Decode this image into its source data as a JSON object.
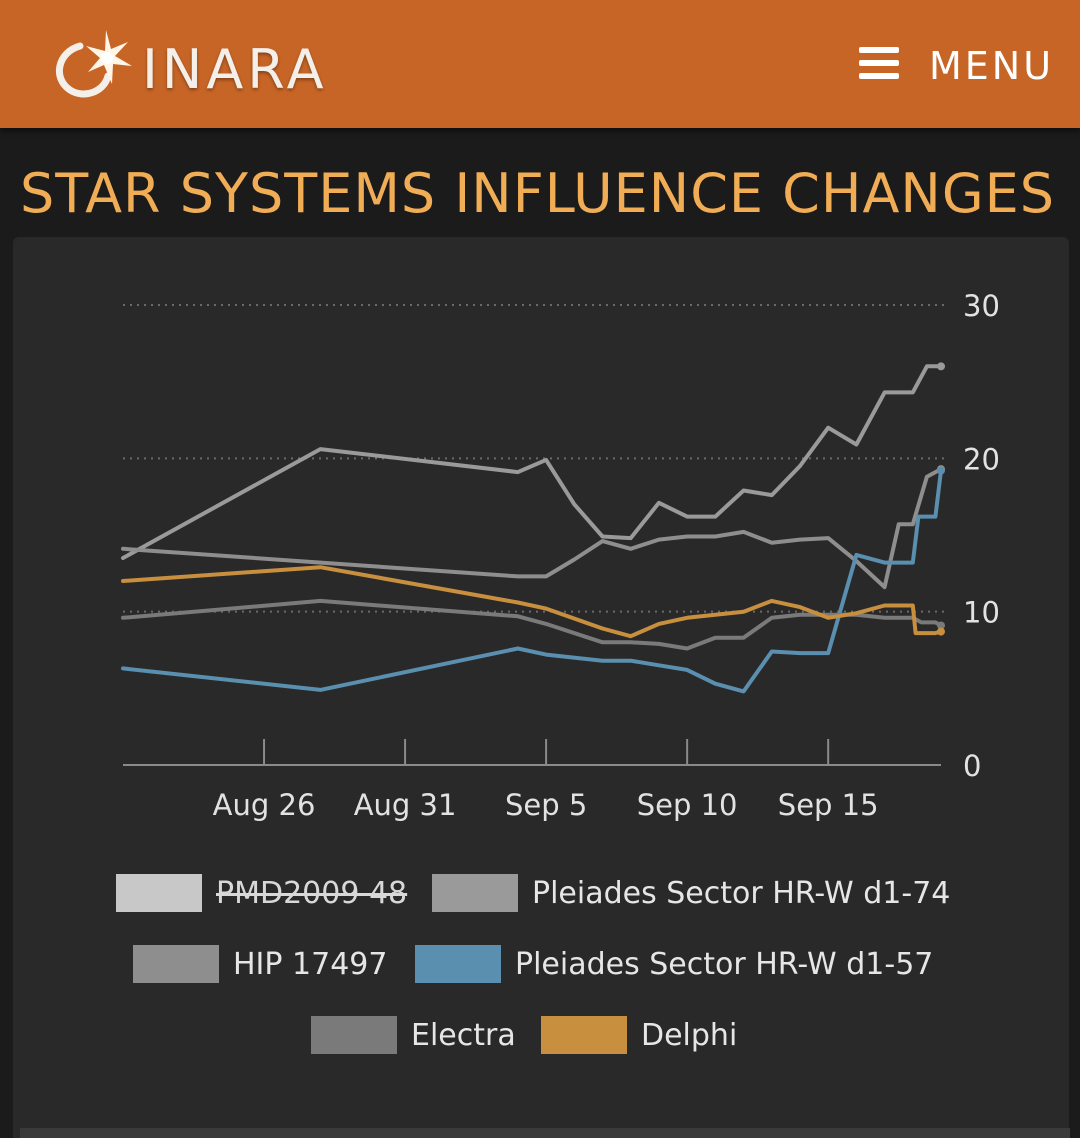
{
  "header": {
    "brand": "INARA",
    "menu_label": "MENU",
    "background_color": "#c76526"
  },
  "page_title": "STAR SYSTEMS INFLUENCE CHANGES",
  "chart_data": {
    "type": "line",
    "title": "",
    "xlabel": "",
    "ylabel": "",
    "ylim": [
      0,
      30
    ],
    "y_axis_position": "right",
    "y_ticks": [
      0,
      10,
      20,
      30
    ],
    "x_ticks": [
      "Aug 26",
      "Aug 31",
      "Sep 5",
      "Sep 10",
      "Sep 15"
    ],
    "x_range": [
      "2024-08-21",
      "2024-09-19"
    ],
    "grid": true,
    "legend_position": "bottom",
    "series": [
      {
        "name": "PMD2009 48",
        "color": "#c8c8c8",
        "visible": false,
        "points": []
      },
      {
        "name": "Pleiades Sector HR-W d1-74",
        "color": "#9a9a9a",
        "visible": true,
        "points": [
          [
            "2024-08-21",
            13.5
          ],
          [
            "2024-08-28",
            20.6
          ],
          [
            "2024-09-04",
            19.1
          ],
          [
            "2024-09-05",
            19.9
          ],
          [
            "2024-09-06",
            17.0
          ],
          [
            "2024-09-07",
            14.9
          ],
          [
            "2024-09-08",
            14.8
          ],
          [
            "2024-09-09",
            17.1
          ],
          [
            "2024-09-10",
            16.2
          ],
          [
            "2024-09-11",
            16.2
          ],
          [
            "2024-09-12",
            17.9
          ],
          [
            "2024-09-13",
            17.6
          ],
          [
            "2024-09-14",
            19.5
          ],
          [
            "2024-09-15",
            22.0
          ],
          [
            "2024-09-16",
            20.9
          ],
          [
            "2024-09-17",
            24.3
          ],
          [
            "2024-09-18",
            24.3
          ],
          [
            "2024-09-18.5",
            26.0
          ],
          [
            "2024-09-19",
            26.0
          ]
        ]
      },
      {
        "name": "HIP 17497",
        "color": "#8e8e8e",
        "visible": true,
        "points": [
          [
            "2024-08-21",
            14.1
          ],
          [
            "2024-09-04",
            12.3
          ],
          [
            "2024-09-05",
            12.3
          ],
          [
            "2024-09-06",
            13.4
          ],
          [
            "2024-09-07",
            14.6
          ],
          [
            "2024-09-08",
            14.1
          ],
          [
            "2024-09-09",
            14.7
          ],
          [
            "2024-09-10",
            14.9
          ],
          [
            "2024-09-11",
            14.9
          ],
          [
            "2024-09-12",
            15.2
          ],
          [
            "2024-09-13",
            14.5
          ],
          [
            "2024-09-14",
            14.7
          ],
          [
            "2024-09-15",
            14.8
          ],
          [
            "2024-09-16",
            13.3
          ],
          [
            "2024-09-17",
            11.6
          ],
          [
            "2024-09-17.5",
            15.7
          ],
          [
            "2024-09-18",
            15.7
          ],
          [
            "2024-09-18.5",
            18.8
          ],
          [
            "2024-09-19",
            19.3
          ]
        ]
      },
      {
        "name": "Pleiades Sector HR-W d1-57",
        "color": "#5a8fb0",
        "visible": true,
        "points": [
          [
            "2024-08-21",
            6.3
          ],
          [
            "2024-08-28",
            4.9
          ],
          [
            "2024-09-04",
            7.6
          ],
          [
            "2024-09-05",
            7.2
          ],
          [
            "2024-09-07",
            6.8
          ],
          [
            "2024-09-08",
            6.8
          ],
          [
            "2024-09-09",
            6.5
          ],
          [
            "2024-09-10",
            6.2
          ],
          [
            "2024-09-11",
            5.3
          ],
          [
            "2024-09-12",
            4.8
          ],
          [
            "2024-09-13",
            7.4
          ],
          [
            "2024-09-14",
            7.3
          ],
          [
            "2024-09-15",
            7.3
          ],
          [
            "2024-09-16",
            13.7
          ],
          [
            "2024-09-17",
            13.2
          ],
          [
            "2024-09-18",
            13.2
          ],
          [
            "2024-09-18.2",
            16.2
          ],
          [
            "2024-09-18.8",
            16.2
          ],
          [
            "2024-09-19",
            19.2
          ]
        ]
      },
      {
        "name": "Electra",
        "color": "#7a7a7a",
        "visible": true,
        "points": [
          [
            "2024-08-21",
            9.6
          ],
          [
            "2024-08-28",
            10.7
          ],
          [
            "2024-09-04",
            9.7
          ],
          [
            "2024-09-05",
            9.2
          ],
          [
            "2024-09-07",
            8.0
          ],
          [
            "2024-09-08",
            8.0
          ],
          [
            "2024-09-09",
            7.9
          ],
          [
            "2024-09-10",
            7.6
          ],
          [
            "2024-09-11",
            8.3
          ],
          [
            "2024-09-12",
            8.3
          ],
          [
            "2024-09-13",
            9.6
          ],
          [
            "2024-09-14",
            9.8
          ],
          [
            "2024-09-15",
            9.8
          ],
          [
            "2024-09-16",
            9.8
          ],
          [
            "2024-09-17",
            9.6
          ],
          [
            "2024-09-18",
            9.6
          ],
          [
            "2024-09-18.3",
            9.3
          ],
          [
            "2024-09-18.8",
            9.3
          ],
          [
            "2024-09-19",
            9.1
          ]
        ]
      },
      {
        "name": "Delphi",
        "color": "#c78f3e",
        "visible": true,
        "points": [
          [
            "2024-08-21",
            12.0
          ],
          [
            "2024-08-28",
            12.9
          ],
          [
            "2024-09-04",
            10.6
          ],
          [
            "2024-09-05",
            10.2
          ],
          [
            "2024-09-07",
            8.9
          ],
          [
            "2024-09-08",
            8.4
          ],
          [
            "2024-09-09",
            9.2
          ],
          [
            "2024-09-10",
            9.6
          ],
          [
            "2024-09-11",
            9.8
          ],
          [
            "2024-09-12",
            10.0
          ],
          [
            "2024-09-13",
            10.7
          ],
          [
            "2024-09-14",
            10.3
          ],
          [
            "2024-09-15",
            9.6
          ],
          [
            "2024-09-16",
            9.9
          ],
          [
            "2024-09-17",
            10.4
          ],
          [
            "2024-09-18",
            10.4
          ],
          [
            "2024-09-18.1",
            8.6
          ],
          [
            "2024-09-18.8",
            8.6
          ],
          [
            "2024-09-19",
            8.7
          ]
        ]
      }
    ]
  }
}
